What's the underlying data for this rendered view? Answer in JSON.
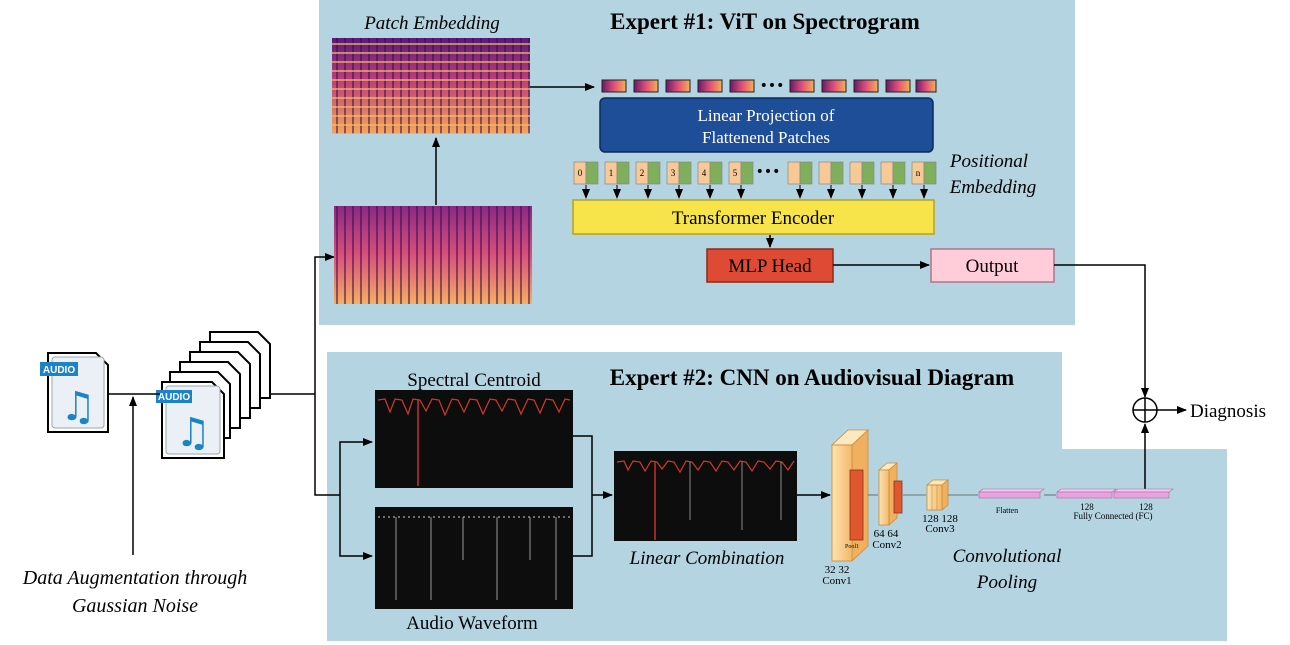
{
  "expert1": {
    "title": "Expert #1: ViT on Spectrogram",
    "patch_embedding": "Patch Embedding",
    "linear_projection": [
      "Linear Projection of",
      "Flattenend Patches"
    ],
    "positional_embedding": [
      "Positional",
      "Embedding"
    ],
    "transformer_encoder": "Transformer Encoder",
    "mlp_head": "MLP Head",
    "output": "Output",
    "ellipsis": "•••",
    "position_tokens": [
      "0",
      "1",
      "2",
      "3",
      "4",
      "5",
      "n"
    ]
  },
  "expert2": {
    "title": "Expert #2: CNN on Audiovisual Diagram",
    "spectral_centroid": "Spectral Centroid",
    "audio_waveform": "Audio Waveform",
    "linear_combination": "Linear Combination",
    "conv_pooling": [
      "Convolutional",
      "Pooling"
    ],
    "conv1": [
      "32 32",
      "Conv1"
    ],
    "conv2": [
      "64 64",
      "Conv2"
    ],
    "conv3": [
      "128 128",
      "Conv3"
    ],
    "pool_label": "Pool1",
    "flatten": "Flatten",
    "fc_numbers": [
      "128",
      "128"
    ],
    "fc_label": "Fully Connected (FC)"
  },
  "input": {
    "audio_badge": "AUDIO",
    "augmentation": [
      "Data Augmentation through",
      "Gaussian Noise"
    ]
  },
  "output": {
    "diagnosis": "Diagnosis"
  },
  "colors": {
    "panel_bg": "#b3d4e0",
    "projection_blue": "#1f4e99",
    "encoder_yellow": "#f7e44a",
    "mlp_red": "#de4a33",
    "output_pink": "#ffccd9"
  }
}
